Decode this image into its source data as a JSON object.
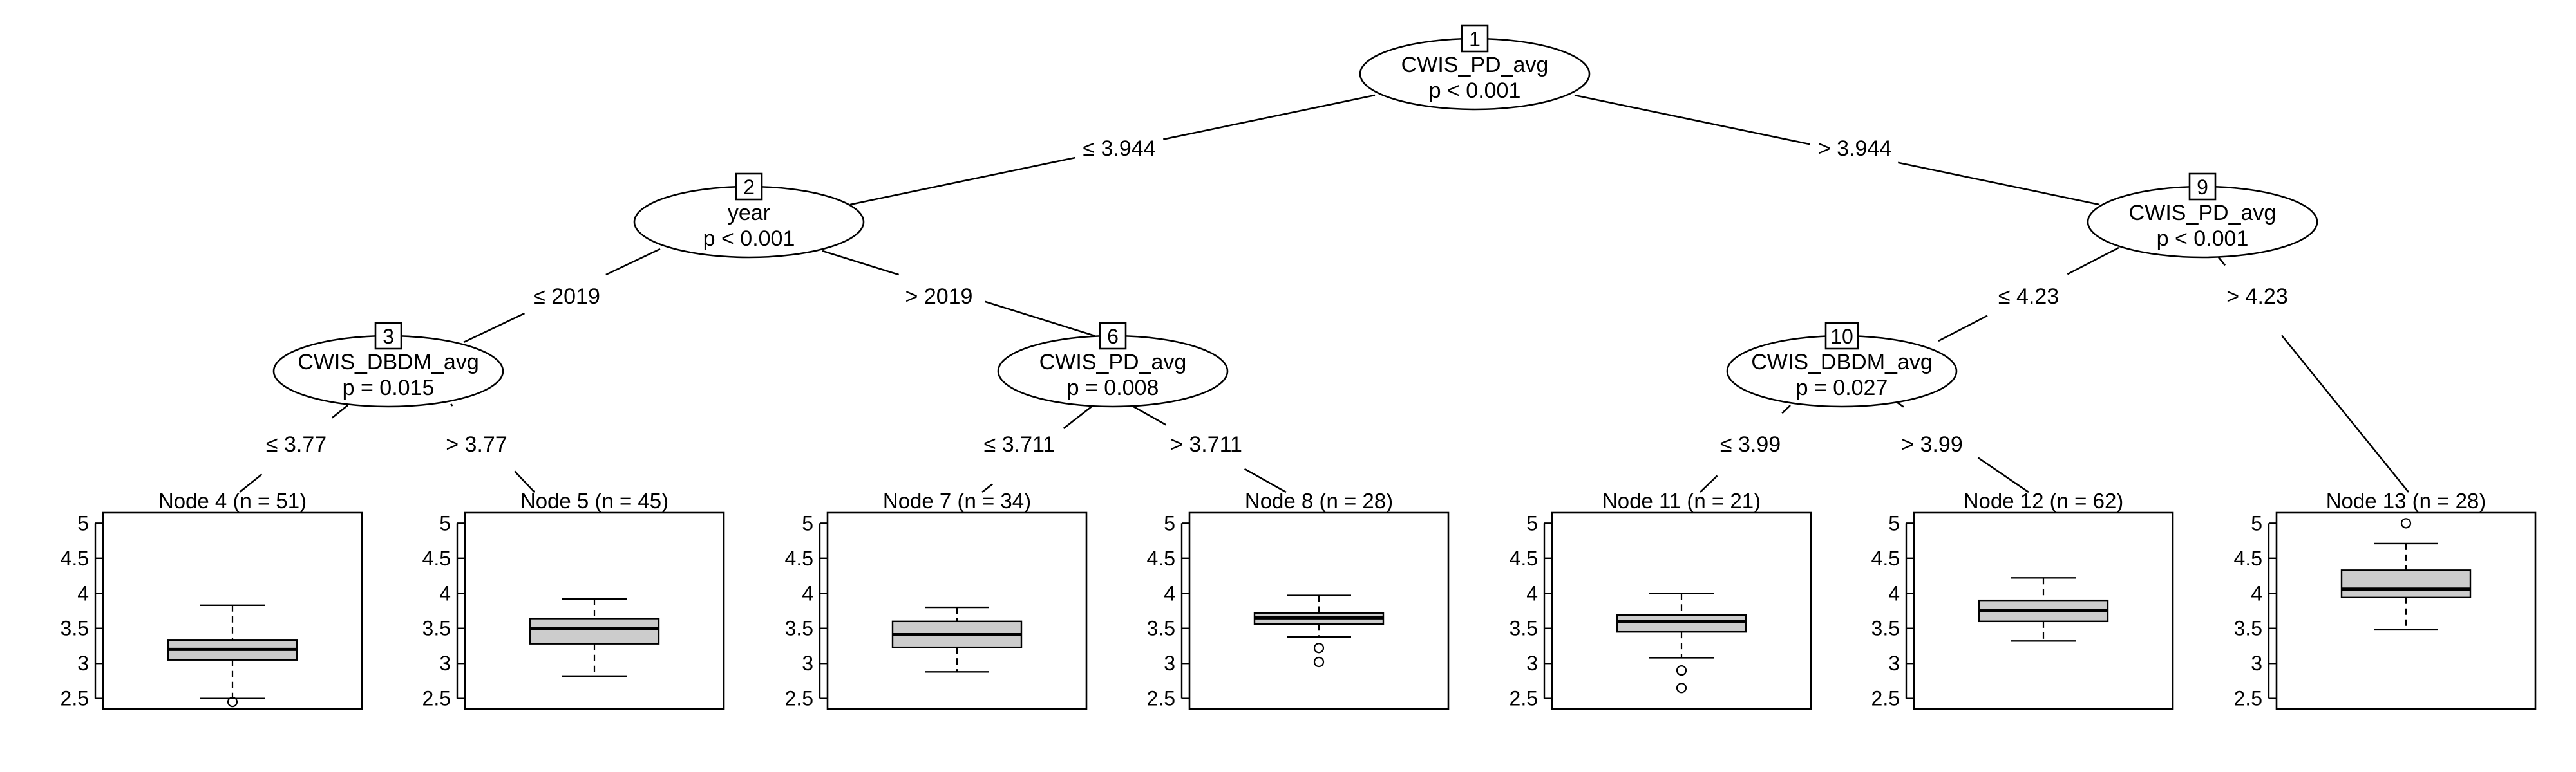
{
  "tree": {
    "inner_nodes": [
      {
        "id": "1",
        "variable": "CWIS_PD_avg",
        "p": "p < 0.001"
      },
      {
        "id": "2",
        "variable": "year",
        "p": "p < 0.001"
      },
      {
        "id": "3",
        "variable": "CWIS_DBDM_avg",
        "p": "p = 0.015"
      },
      {
        "id": "6",
        "variable": "CWIS_PD_avg",
        "p": "p = 0.008"
      },
      {
        "id": "9",
        "variable": "CWIS_PD_avg",
        "p": "p < 0.001"
      },
      {
        "id": "10",
        "variable": "CWIS_DBDM_avg",
        "p": "p = 0.027"
      }
    ],
    "edges": [
      {
        "from": "1",
        "to": "2",
        "label": "≤ 3.944"
      },
      {
        "from": "1",
        "to": "9",
        "label": "> 3.944"
      },
      {
        "from": "2",
        "to": "3",
        "label": "≤ 2019"
      },
      {
        "from": "2",
        "to": "6",
        "label": "> 2019"
      },
      {
        "from": "3",
        "to": "4",
        "label": "≤ 3.77"
      },
      {
        "from": "3",
        "to": "5",
        "label": "> 3.77"
      },
      {
        "from": "6",
        "to": "7",
        "label": "≤ 3.711"
      },
      {
        "from": "6",
        "to": "8",
        "label": "> 3.711"
      },
      {
        "from": "9",
        "to": "10",
        "label": "≤ 4.23"
      },
      {
        "from": "9",
        "to": "13",
        "label": "> 4.23"
      },
      {
        "from": "10",
        "to": "11",
        "label": "≤ 3.99"
      },
      {
        "from": "10",
        "to": "12",
        "label": "> 3.99"
      }
    ],
    "terminal_nodes": [
      {
        "id": "4",
        "title": "Node 4 (n = 51)",
        "whisker_low": 2.5,
        "q1": 3.05,
        "median": 3.2,
        "q3": 3.33,
        "whisker_high": 3.83,
        "outliers": [
          2.45
        ]
      },
      {
        "id": "5",
        "title": "Node 5 (n = 45)",
        "whisker_low": 2.82,
        "q1": 3.28,
        "median": 3.5,
        "q3": 3.64,
        "whisker_high": 3.92,
        "outliers": []
      },
      {
        "id": "7",
        "title": "Node 7 (n = 34)",
        "whisker_low": 2.88,
        "q1": 3.23,
        "median": 3.41,
        "q3": 3.6,
        "whisker_high": 3.8,
        "outliers": []
      },
      {
        "id": "8",
        "title": "Node 8 (n = 28)",
        "whisker_low": 3.38,
        "q1": 3.56,
        "median": 3.65,
        "q3": 3.72,
        "whisker_high": 3.97,
        "outliers": [
          3.22,
          3.02
        ]
      },
      {
        "id": "11",
        "title": "Node 11 (n = 21)",
        "whisker_low": 3.08,
        "q1": 3.45,
        "median": 3.6,
        "q3": 3.69,
        "whisker_high": 4.0,
        "outliers": [
          2.9,
          2.65
        ]
      },
      {
        "id": "12",
        "title": "Node 12 (n = 62)",
        "whisker_low": 3.32,
        "q1": 3.6,
        "median": 3.75,
        "q3": 3.9,
        "whisker_high": 4.22,
        "outliers": []
      },
      {
        "id": "13",
        "title": "Node 13 (n = 28)",
        "whisker_low": 3.48,
        "q1": 3.94,
        "median": 4.06,
        "q3": 4.33,
        "whisker_high": 4.71,
        "outliers": [
          5.0
        ]
      }
    ],
    "y_axis": {
      "ticks": [
        2.5,
        3,
        3.5,
        4,
        4.5,
        5
      ],
      "tick_labels": [
        "2.5",
        "3",
        "3.5",
        "4",
        "4.5",
        "5"
      ],
      "range": [
        2.35,
        5.15
      ]
    },
    "colors": {
      "box_fill": "#cccccc",
      "line": "#000000",
      "background": "#ffffff"
    }
  }
}
